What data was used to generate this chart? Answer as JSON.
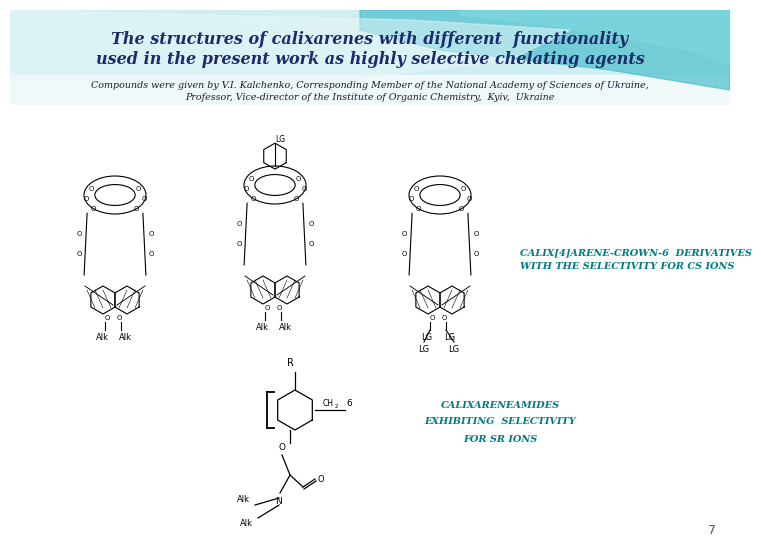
{
  "title_line1": "The structures of calixarenes with different  functionality",
  "title_line2": "used in the present work as highly selective chelating agents",
  "subtitle_line1": "Compounds were given by V.I. Kalchenko, Corresponding Member of the National Academy of Sciences of Ukraine,",
  "subtitle_line2": "Professor, Vice-director of the Institute of Organic Chemistry,  Kyiv,  Ukraine",
  "label_cs": "CALIX[4]ARENE-CROWN-6  DERIVATIVES\nWITH THE SELECTIVITY FOR CS IONS",
  "label_sr_1": "CALIXARENEAMIDES",
  "label_sr_2": "EXHIBITING  SELECTIVITY",
  "label_sr_3": "FOR SR IONS",
  "page_number": "7",
  "title_color": "#1c2b6b",
  "teal_color": "#007b85",
  "subtitle_color": "#1a1a2e",
  "title_fontsize": 11.5,
  "subtitle_fontsize": 6.8,
  "label_fontsize": 7.0,
  "bg_top_cyan": "#5ecbd8",
  "bg_white": "#ffffff",
  "swoosh1_color": "#40c0cc",
  "swoosh2_color": "#70d5de"
}
